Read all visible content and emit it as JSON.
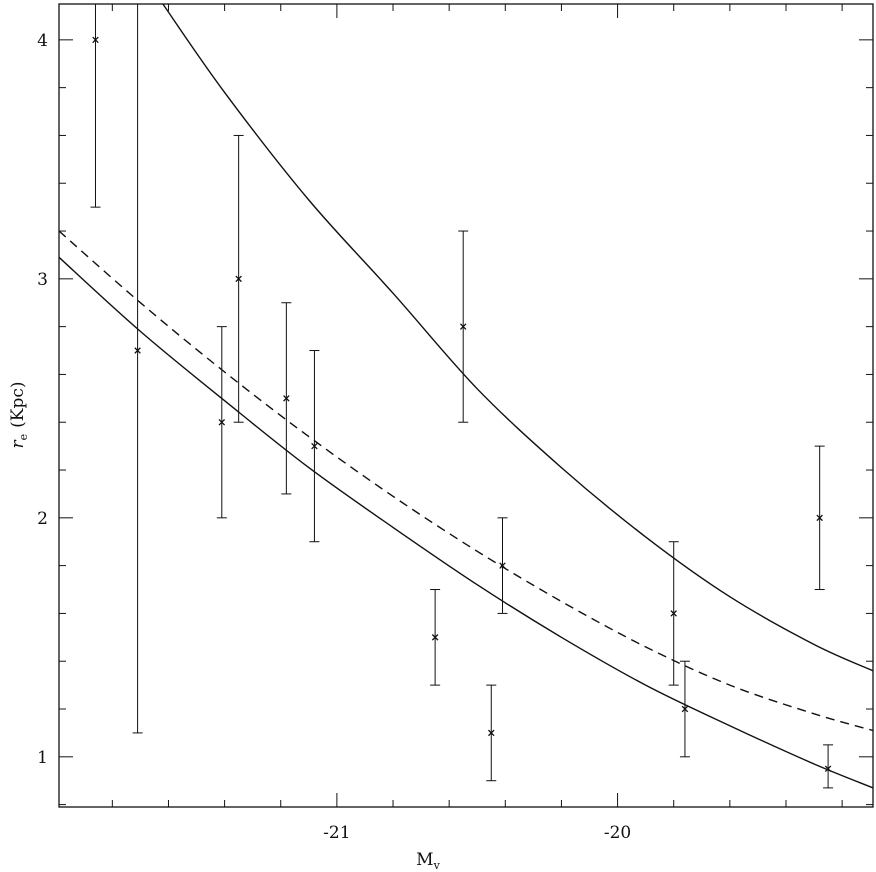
{
  "chart_data": {
    "type": "scatter",
    "title": "",
    "xlabel": "M",
    "xlabel_subscript": "v",
    "ylabel": "r",
    "ylabel_subscript": "e",
    "ylabel_unit": "(Kpc)",
    "xlim": [
      -21.99,
      -19.09
    ],
    "ylim": [
      0.79,
      4.15
    ],
    "x_ticks": [
      -21,
      -20
    ],
    "x_tick_labels": [
      "-21",
      "-20"
    ],
    "y_ticks": [
      1,
      2,
      3,
      4
    ],
    "y_tick_labels": [
      "1",
      "2",
      "3",
      "4"
    ],
    "grid": false,
    "legend": "none",
    "marker": "x",
    "points": [
      {
        "x": -21.86,
        "y": 4.0,
        "ylow": 3.3,
        "yhigh": 4.15
      },
      {
        "x": -21.71,
        "y": 2.7,
        "ylow": 1.1,
        "yhigh": 4.15
      },
      {
        "x": -21.41,
        "y": 2.4,
        "ylow": 2.0,
        "yhigh": 2.8
      },
      {
        "x": -21.35,
        "y": 3.0,
        "ylow": 2.4,
        "yhigh": 3.6
      },
      {
        "x": -21.18,
        "y": 2.5,
        "ylow": 2.1,
        "yhigh": 2.9
      },
      {
        "x": -21.08,
        "y": 2.3,
        "ylow": 1.9,
        "yhigh": 2.7
      },
      {
        "x": -20.65,
        "y": 1.5,
        "ylow": 1.3,
        "yhigh": 1.7
      },
      {
        "x": -20.55,
        "y": 2.8,
        "ylow": 2.4,
        "yhigh": 3.2
      },
      {
        "x": -20.45,
        "y": 1.1,
        "ylow": 0.9,
        "yhigh": 1.3
      },
      {
        "x": -20.41,
        "y": 1.8,
        "ylow": 1.6,
        "yhigh": 2.0
      },
      {
        "x": -19.8,
        "y": 1.6,
        "ylow": 1.3,
        "yhigh": 1.9
      },
      {
        "x": -19.76,
        "y": 1.2,
        "ylow": 1.0,
        "yhigh": 1.4
      },
      {
        "x": -19.28,
        "y": 2.0,
        "ylow": 1.7,
        "yhigh": 2.3
      },
      {
        "x": -19.25,
        "y": 0.95,
        "ylow": 0.87,
        "yhigh": 1.05
      }
    ],
    "curves": [
      {
        "style": "solid",
        "x": [
          -21.99,
          -21.7,
          -21.4,
          -21.1,
          -20.8,
          -20.5,
          -20.2,
          -19.9,
          -19.6,
          -19.3,
          -19.09
        ],
        "y": [
          3.09,
          2.78,
          2.49,
          2.21,
          1.96,
          1.72,
          1.5,
          1.3,
          1.13,
          0.97,
          0.87
        ]
      },
      {
        "style": "dashed",
        "x": [
          -21.99,
          -21.7,
          -21.4,
          -21.1,
          -20.8,
          -20.5,
          -20.2,
          -19.9,
          -19.6,
          -19.3,
          -19.09
        ],
        "y": [
          3.2,
          2.9,
          2.61,
          2.34,
          2.09,
          1.86,
          1.65,
          1.46,
          1.3,
          1.18,
          1.11
        ]
      },
      {
        "style": "solid",
        "x": [
          -21.62,
          -21.4,
          -21.1,
          -20.8,
          -20.5,
          -20.2,
          -19.9,
          -19.6,
          -19.3,
          -19.09
        ],
        "y": [
          4.15,
          3.78,
          3.33,
          2.94,
          2.54,
          2.21,
          1.92,
          1.67,
          1.47,
          1.36
        ]
      }
    ]
  }
}
